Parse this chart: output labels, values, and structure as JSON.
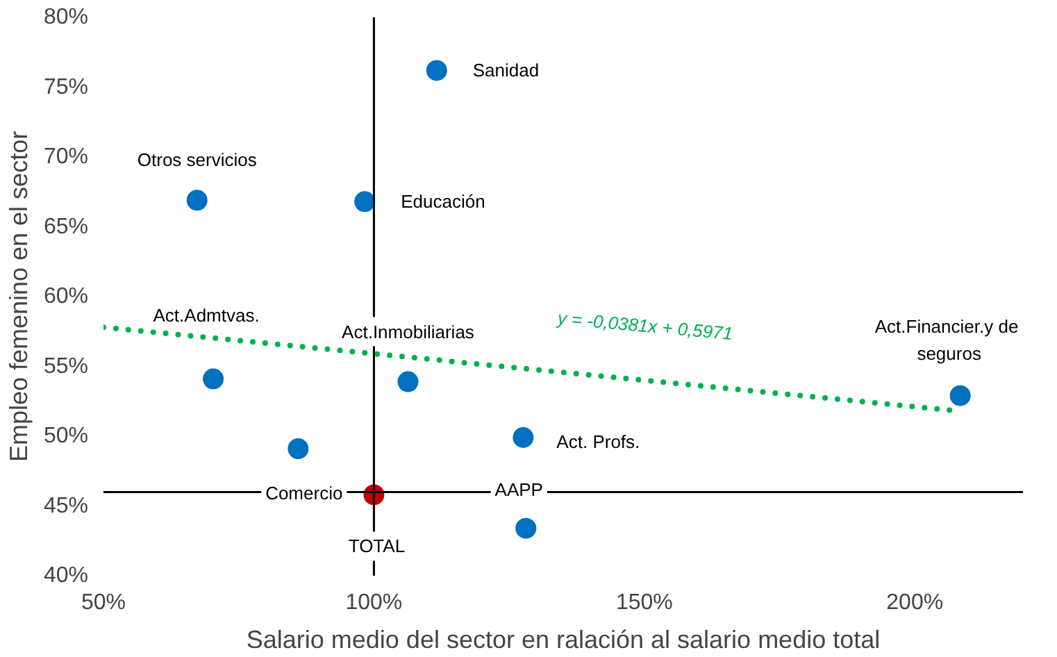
{
  "chart_data": {
    "type": "scatter",
    "xlabel": "Salario medio del sector en ralación al salario medio total",
    "ylabel": "Empleo femenino en el sector",
    "xlim": [
      50,
      220
    ],
    "ylim": [
      40,
      80
    ],
    "xticks": [
      {
        "value": 50,
        "label": "50%"
      },
      {
        "value": 100,
        "label": "100%"
      },
      {
        "value": 150,
        "label": "150%"
      },
      {
        "value": 200,
        "label": "200%"
      }
    ],
    "yticks": [
      {
        "value": 40,
        "label": "40%"
      },
      {
        "value": 45,
        "label": "45%"
      },
      {
        "value": 50,
        "label": "50%"
      },
      {
        "value": 55,
        "label": "55%"
      },
      {
        "value": 60,
        "label": "60%"
      },
      {
        "value": 65,
        "label": "65%"
      },
      {
        "value": 70,
        "label": "70%"
      },
      {
        "value": 75,
        "label": "75%"
      },
      {
        "value": 80,
        "label": "80%"
      }
    ],
    "grid": false,
    "series": [
      {
        "color": "#0070c0",
        "marker": "circle",
        "x": [
          111.6,
          98.3,
          67.3,
          70.3,
          106.3,
          86.0,
          127.6,
          128.1,
          208.4
        ],
        "values": [
          76.2,
          66.8,
          66.9,
          54.1,
          53.9,
          49.1,
          49.9,
          43.4,
          52.9
        ],
        "value_labels": [
          "Sanidad",
          "Educación",
          "Otros servicios",
          "Act.Admtvas.",
          "Act.Inmobiliarias",
          "Comercio",
          "Act. Profs.",
          "AAPP",
          "Act.Financier.y  de\nseguros"
        ]
      },
      {
        "color": "#c00000",
        "marker": "circle",
        "x": [
          100
        ],
        "values": [
          45.8
        ],
        "value_labels": [
          "TOTAL"
        ]
      },
      {
        "type": "line",
        "color": "#00b050",
        "line_style": "dotted",
        "x": [
          50,
          208
        ],
        "values": [
          57.8,
          51.8
        ]
      }
    ],
    "ref_lines": [
      {
        "axis": "x",
        "value": 100,
        "color": "#000000"
      },
      {
        "axis": "y",
        "value": 46,
        "color": "#000000"
      }
    ],
    "annotations": [
      "y = -0,0381x + 0,5971"
    ]
  }
}
